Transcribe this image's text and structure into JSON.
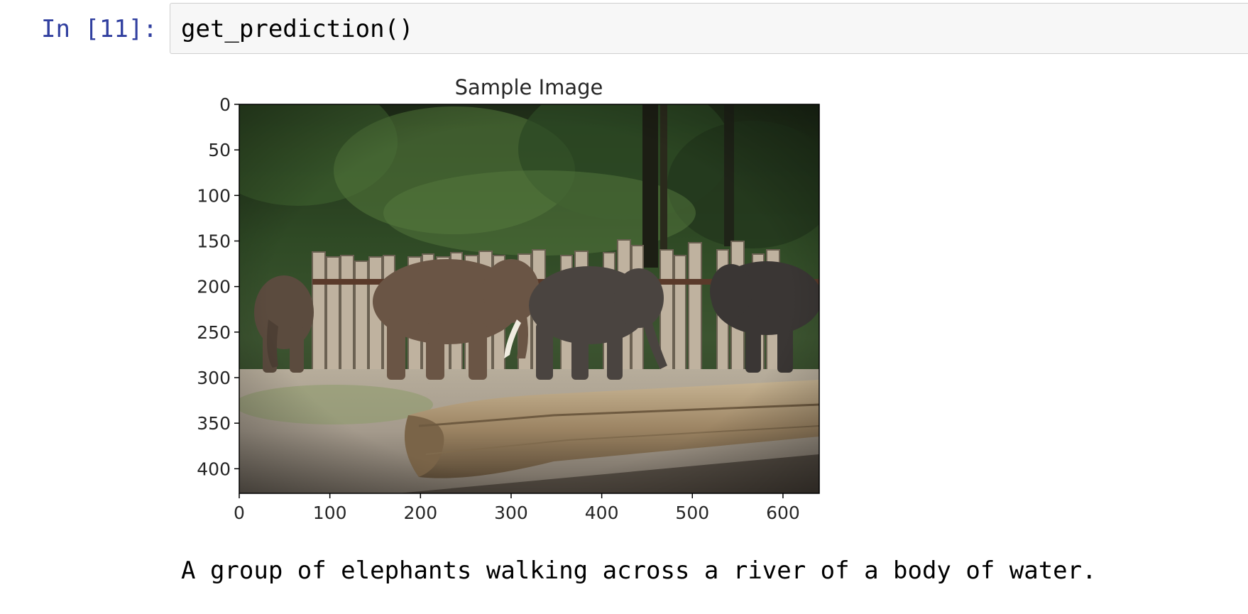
{
  "cell": {
    "prompt": "In [11]:",
    "code": "get_prediction()"
  },
  "chart_data": {
    "type": "image",
    "title": "Sample Image",
    "xlabel": "",
    "ylabel": "",
    "xlim": [
      0,
      640
    ],
    "ylim": [
      427,
      0
    ],
    "x_ticks": [
      0,
      100,
      200,
      300,
      400,
      500,
      600
    ],
    "y_ticks": [
      0,
      50,
      100,
      150,
      200,
      250,
      300,
      350,
      400
    ],
    "image_subject": "elephants"
  },
  "output": {
    "caption": "A group of elephants walking across a river of a body of water."
  },
  "colors": {
    "prompt": "#303f9f",
    "input_bg": "#f7f7f7",
    "input_border": "#cfcfcf"
  }
}
